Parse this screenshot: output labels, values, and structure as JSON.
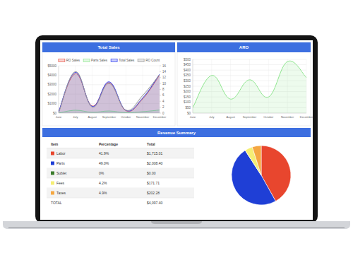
{
  "chart_data": [
    {
      "type": "line",
      "title": "Total Sales",
      "categories": [
        "June",
        "July",
        "August",
        "September",
        "October",
        "November",
        "December"
      ],
      "series": [
        {
          "name": "RO Sales",
          "color": "#e8574c",
          "values": [
            120,
            4150,
            750,
            3200,
            250,
            1500,
            4000
          ]
        },
        {
          "name": "Parts Sales",
          "color": "#8fe68f",
          "values": [
            0,
            300,
            80,
            220,
            40,
            150,
            320
          ]
        },
        {
          "name": "Total Sales",
          "color": "#3340f0",
          "values": [
            150,
            4300,
            700,
            3300,
            300,
            1600,
            4100
          ]
        },
        {
          "name": "RO Count",
          "color": "#9a9a9a",
          "values": [
            0,
            14,
            2,
            10,
            1,
            6,
            13
          ],
          "axis": "y2"
        }
      ],
      "ylim": [
        0,
        5000
      ],
      "yticks": [
        {
          "value": 0,
          "label": "$0"
        },
        {
          "value": 1000,
          "label": "$1000"
        },
        {
          "value": 2000,
          "label": "$2000"
        },
        {
          "value": 3000,
          "label": "$3000"
        },
        {
          "value": 4000,
          "label": "$4000"
        },
        {
          "value": 5000,
          "label": "$5000"
        }
      ],
      "y2lim": [
        0,
        16
      ],
      "y2ticks": [
        0,
        2,
        4,
        6,
        8,
        10,
        12,
        14,
        16
      ],
      "legend": "top",
      "grid": true
    },
    {
      "type": "line",
      "title": "ARO",
      "categories": [
        "June",
        "July",
        "August",
        "September",
        "October",
        "November",
        "December"
      ],
      "values": [
        50,
        350,
        130,
        310,
        150,
        480,
        330
      ],
      "color": "#8ee68e",
      "ylim": [
        0,
        500
      ],
      "yticks": [
        {
          "value": 0,
          "label": "$0"
        },
        {
          "value": 50,
          "label": "$50"
        },
        {
          "value": 100,
          "label": "$100"
        },
        {
          "value": 150,
          "label": "$150"
        },
        {
          "value": 200,
          "label": "$200"
        },
        {
          "value": 250,
          "label": "$250"
        },
        {
          "value": 300,
          "label": "$300"
        },
        {
          "value": 350,
          "label": "$350"
        },
        {
          "value": 400,
          "label": "$400"
        },
        {
          "value": 450,
          "label": "$450"
        },
        {
          "value": 500,
          "label": "$500"
        }
      ],
      "grid": true
    },
    {
      "type": "pie",
      "values": [
        41.9,
        49.0,
        0,
        4.2,
        4.9
      ],
      "colors": [
        "#e8462e",
        "#1f3fd6",
        "#3c7d2c",
        "#f5ee74",
        "#f5a742"
      ]
    }
  ],
  "revenue_summary": {
    "title": "Revenue Summary",
    "columns": [
      "Item",
      "Percentage",
      "Total"
    ],
    "rows": [
      [
        "Labor",
        "41.9%",
        "$1,715.01"
      ],
      [
        "Parts",
        "49.0%",
        "$2,008.40"
      ],
      [
        "Sublet",
        "0%",
        "$0.00"
      ],
      [
        "Fees",
        "4.2%",
        "$171.71"
      ],
      [
        "Taxes",
        "4.9%",
        "$202.28"
      ]
    ],
    "footer": {
      "label": "TOTAL",
      "total": "$4,097.40"
    }
  }
}
